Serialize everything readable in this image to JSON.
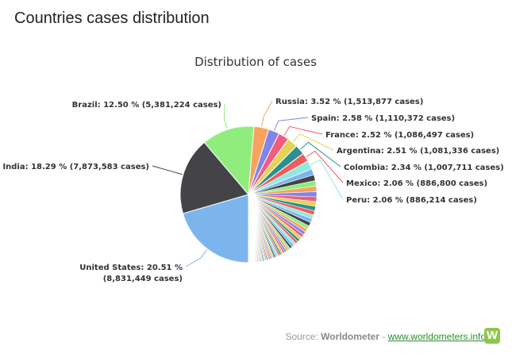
{
  "page": {
    "title": "Countries cases distribution",
    "source_prefix": "Source: ",
    "source_org": "Worldometer",
    "source_sep": " - ",
    "source_link": "www.worldometers.info",
    "logo_letter": "W"
  },
  "chart_data": {
    "type": "pie",
    "title": "Distribution of cases",
    "unit": "%",
    "slices": [
      {
        "name": "United States",
        "percent": 20.51,
        "cases": "8,831,449",
        "color": "#7cb5ec",
        "label": [
          "United States: 20.51 %",
          "(8,831,449 cases)"
        ]
      },
      {
        "name": "India",
        "percent": 18.29,
        "cases": "7,873,583",
        "color": "#434348",
        "label": [
          "India: 18.29 % (7,873,583 cases)"
        ]
      },
      {
        "name": "Brazil",
        "percent": 12.5,
        "cases": "5,381,224",
        "color": "#90ed7d",
        "label": [
          "Brazil: 12.50 % (5,381,224 cases)"
        ]
      },
      {
        "name": "Russia",
        "percent": 3.52,
        "cases": "1,513,877",
        "color": "#f7a35c",
        "label": [
          "Russia: 3.52 % (1,513,877 cases)"
        ]
      },
      {
        "name": "Spain",
        "percent": 2.58,
        "cases": "1,110,372",
        "color": "#8085e9",
        "label": [
          "Spain: 2.58 % (1,110,372 cases)"
        ]
      },
      {
        "name": "France",
        "percent": 2.52,
        "cases": "1,086,497",
        "color": "#f15c80",
        "label": [
          "France: 2.52 % (1,086,497 cases)"
        ]
      },
      {
        "name": "Argentina",
        "percent": 2.51,
        "cases": "1,081,336",
        "color": "#e4d354",
        "label": [
          "Argentina: 2.51 % (1,081,336 cases)"
        ]
      },
      {
        "name": "Colombia",
        "percent": 2.34,
        "cases": "1,007,711",
        "color": "#2b908f",
        "label": [
          "Colombia: 2.34 % (1,007,711 cases)"
        ]
      },
      {
        "name": "Mexico",
        "percent": 2.06,
        "cases": "886,800",
        "color": "#f45b5b",
        "label": [
          "Mexico: 2.06 % (886,800 cases)"
        ]
      },
      {
        "name": "Peru",
        "percent": 2.06,
        "cases": "886,214",
        "color": "#91e8e1",
        "label": [
          "Peru: 2.06 % (886,214 cases)"
        ]
      }
    ],
    "other_slices_percent": 31.11,
    "palette": [
      "#7cb5ec",
      "#434348",
      "#90ed7d",
      "#f7a35c",
      "#8085e9",
      "#f15c80",
      "#e4d354",
      "#2b908f",
      "#f45b5b",
      "#91e8e1"
    ]
  }
}
